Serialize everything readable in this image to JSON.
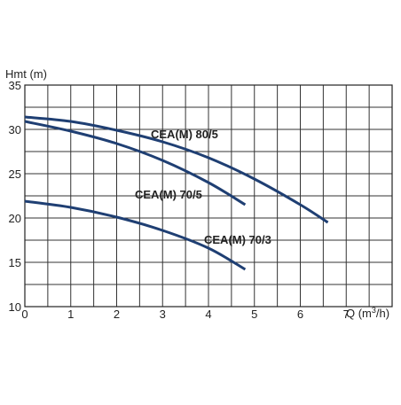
{
  "chart_data": {
    "type": "line",
    "title": "",
    "ylabel": "Hmt (m)",
    "xlabel": "Q (m³/h)",
    "xlim": [
      0,
      8
    ],
    "ylim": [
      10,
      35
    ],
    "x_ticks": [
      0,
      1,
      2,
      3,
      4,
      5,
      6,
      7
    ],
    "x_tick_labels": [
      "0",
      "1",
      "2",
      "3",
      "4",
      "5",
      "6",
      "7"
    ],
    "y_ticks": [
      10,
      15,
      20,
      25,
      30,
      35
    ],
    "y_tick_labels": [
      "10",
      "15",
      "20",
      "25",
      "30",
      "35"
    ],
    "grid": true,
    "line_color": "#1f3f73",
    "series": [
      {
        "name": "CEA(M) 80/5",
        "x": [
          0,
          1,
          2,
          3,
          4,
          5,
          6,
          6.6
        ],
        "y": [
          31.4,
          30.9,
          29.9,
          28.6,
          26.8,
          24.4,
          21.5,
          19.5
        ]
      },
      {
        "name": "CEA(M) 70/5",
        "x": [
          0,
          1,
          2,
          3,
          4,
          4.8
        ],
        "y": [
          30.9,
          29.8,
          28.4,
          26.5,
          24.0,
          21.5
        ]
      },
      {
        "name": "CEA(M) 70/3",
        "x": [
          0,
          1,
          2,
          3,
          4,
          4.8
        ],
        "y": [
          21.9,
          21.2,
          20.1,
          18.6,
          16.6,
          14.2
        ]
      }
    ]
  }
}
